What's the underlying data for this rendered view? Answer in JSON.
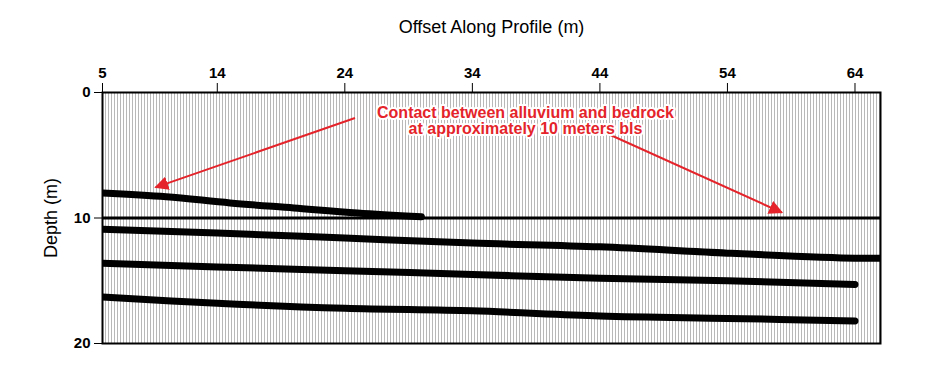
{
  "chart_data": {
    "type": "line",
    "x_label": "Offset Along Profile (m)",
    "y_label": "Depth (m)",
    "xlim": [
      5,
      66
    ],
    "xticks": [
      5,
      14,
      24,
      34,
      44,
      54,
      64
    ],
    "ylim": [
      0,
      20
    ],
    "yticks": [
      0,
      10,
      20
    ],
    "contact_depth": 10,
    "annotation": {
      "text": "Contact between alluvium and bedrock\nat approximately 10 meters bls",
      "color": "#e4242a",
      "points": [
        [
          9.2,
          7.6
        ],
        [
          58.3,
          9.6
        ]
      ]
    },
    "series": [
      {
        "color": "#000000",
        "x": [
          5,
          10,
          15,
          20,
          25,
          30
        ],
        "values": [
          8.0,
          8.3,
          8.8,
          9.2,
          9.6,
          9.9
        ]
      },
      {
        "color": "#000000",
        "x": [
          5,
          14,
          24,
          34,
          44,
          54,
          64,
          66
        ],
        "values": [
          10.9,
          11.2,
          11.6,
          12.0,
          12.3,
          12.8,
          13.2,
          13.2
        ]
      },
      {
        "color": "#000000",
        "x": [
          5,
          14,
          24,
          34,
          44,
          54,
          64
        ],
        "values": [
          13.6,
          13.9,
          14.2,
          14.5,
          14.8,
          15.0,
          15.3
        ]
      },
      {
        "color": "#000000",
        "x": [
          5,
          14,
          24,
          34,
          44,
          54,
          64
        ],
        "values": [
          16.3,
          16.8,
          17.2,
          17.4,
          17.8,
          18.0,
          18.2
        ]
      }
    ]
  }
}
